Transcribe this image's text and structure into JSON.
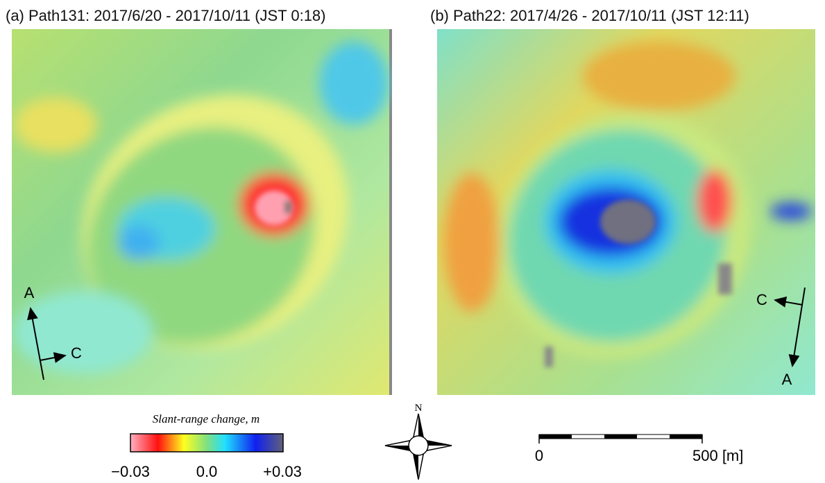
{
  "panels": [
    {
      "title": "(a) Path131: 2017/6/20 - 2017/10/11 (JST 0:18)",
      "arrows": {
        "a": "A",
        "c": "C"
      }
    },
    {
      "title": "(b) Path22: 2017/4/26 - 2017/10/11 (JST 12:11)",
      "arrows": {
        "a": "A",
        "c": "C"
      }
    }
  ],
  "colorbar": {
    "label": "Slant-range change, m",
    "ticks": [
      "−0.03",
      "0.0",
      "+0.03"
    ]
  },
  "compass": {
    "north": "N"
  },
  "scale_bar": {
    "ticks": [
      "0",
      "500 [m]"
    ]
  }
}
